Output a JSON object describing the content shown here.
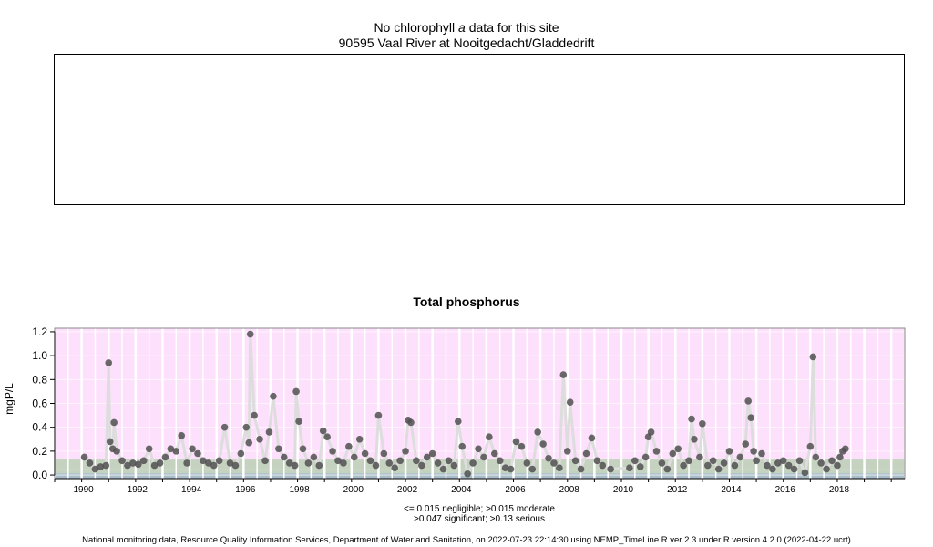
{
  "chlorophyll": {
    "line1_pre": "No chlorophyll",
    "line1_italic": "a",
    "line1_post": "data for this site",
    "site": "90595 Vaal River at Nooitgedacht/Gladdedrift"
  },
  "thresholds": {
    "line1": "<= 0.015 negligible; >0.015 moderate",
    "line2": ">0.047 significant; >0.13 serious"
  },
  "footer": "National monitoring data, Resource Quality Information Services, Department of Water and Sanitation, on 2022-07-23 22:14:30 using NEMP_TimeLine.R ver 2.3 under R version 4.2.0 (2022-04-22 ucrt)",
  "chart_data": {
    "type": "scatter",
    "title": "Total phosphorus",
    "ylabel": "mgP/L",
    "xlabel": "",
    "xlim": [
      1989.0,
      2020.5
    ],
    "ylim": [
      -0.03,
      1.23
    ],
    "x_ticks": [
      1990,
      1992,
      1994,
      1996,
      1998,
      2000,
      2002,
      2004,
      2006,
      2008,
      2010,
      2012,
      2014,
      2016,
      2018
    ],
    "y_ticks": [
      0.0,
      0.2,
      0.4,
      0.6,
      0.8,
      1.0,
      1.2
    ],
    "y_tick_labels": [
      "0.0",
      "0.2",
      "0.4",
      "0.6",
      "0.8",
      "1.0",
      "1.2"
    ],
    "bands": [
      {
        "label": "negligible",
        "from": -0.03,
        "to": 0.015,
        "color": "#a9bcc9"
      },
      {
        "label": "moderate",
        "from": 0.015,
        "to": 0.047,
        "color": "#c4d3c0"
      },
      {
        "label": "significant",
        "from": 0.047,
        "to": 0.13,
        "color": "#c6d2c0"
      },
      {
        "label": "serious",
        "from": 0.13,
        "to": 1.23,
        "color": "#fde0fb"
      }
    ],
    "colors": {
      "points": "#505050",
      "line": "#dddddd",
      "grid": "#ffffff"
    },
    "series": [
      {
        "x": [
          1990.1,
          1990.3,
          1990.5,
          1990.7,
          1990.9,
          1991.0,
          1991.05,
          1991.15,
          1991.2,
          1991.3,
          1991.5,
          1991.7,
          1991.9,
          1992.1,
          1992.3,
          1992.5,
          1992.7,
          1992.9,
          1993.1,
          1993.3,
          1993.5,
          1993.7,
          1993.9,
          1994.1,
          1994.3,
          1994.5,
          1994.7,
          1994.9,
          1995.1,
          1995.3,
          1995.5,
          1995.7,
          1995.9,
          1996.1,
          1996.2,
          1996.25,
          1996.4,
          1996.6,
          1996.8,
          1996.95,
          1997.1,
          1997.3,
          1997.5,
          1997.7,
          1997.9,
          1997.95,
          1998.05,
          1998.2,
          1998.4,
          1998.6,
          1998.8,
          1998.95,
          1999.1,
          1999.3,
          1999.5,
          1999.7,
          1999.9,
          2000.1,
          2000.3,
          2000.5,
          2000.7,
          2000.9,
          2001.0,
          2001.2,
          2001.4,
          2001.6,
          2001.8,
          2002.0,
          2002.1,
          2002.2,
          2002.4,
          2002.6,
          2002.8,
          2003.0,
          2003.2,
          2003.4,
          2003.6,
          2003.8,
          2003.95,
          2004.1,
          2004.3,
          2004.5,
          2004.7,
          2004.9,
          2005.1,
          2005.3,
          2005.5,
          2005.7,
          2005.9,
          2006.1,
          2006.3,
          2006.5,
          2006.7,
          2006.9,
          2007.1,
          2007.3,
          2007.5,
          2007.7,
          2007.85,
          2008.0,
          2008.1,
          2008.3,
          2008.5,
          2008.7,
          2008.9,
          2009.1,
          2009.3,
          2009.6,
          2010.3,
          2010.5,
          2010.7,
          2010.9,
          2011.0,
          2011.1,
          2011.3,
          2011.5,
          2011.7,
          2011.9,
          2012.1,
          2012.3,
          2012.5,
          2012.6,
          2012.7,
          2012.9,
          2013.0,
          2013.2,
          2013.4,
          2013.6,
          2013.8,
          2014.0,
          2014.2,
          2014.4,
          2014.6,
          2014.7,
          2014.8,
          2014.9,
          2015.0,
          2015.2,
          2015.4,
          2015.6,
          2015.8,
          2016.0,
          2016.2,
          2016.4,
          2016.6,
          2016.8,
          2017.0,
          2017.1,
          2017.2,
          2017.4,
          2017.6,
          2017.8,
          2018.0,
          2018.1,
          2018.2,
          2018.3
        ],
        "y": [
          0.15,
          0.1,
          0.05,
          0.07,
          0.08,
          0.94,
          0.28,
          0.22,
          0.44,
          0.2,
          0.12,
          0.08,
          0.1,
          0.09,
          0.12,
          0.22,
          0.08,
          0.1,
          0.15,
          0.22,
          0.2,
          0.33,
          0.1,
          0.22,
          0.18,
          0.12,
          0.1,
          0.08,
          0.12,
          0.4,
          0.1,
          0.08,
          0.18,
          0.4,
          0.27,
          1.18,
          0.5,
          0.3,
          0.12,
          0.36,
          0.66,
          0.22,
          0.15,
          0.1,
          0.08,
          0.7,
          0.45,
          0.22,
          0.1,
          0.15,
          0.08,
          0.37,
          0.32,
          0.2,
          0.12,
          0.1,
          0.24,
          0.15,
          0.3,
          0.18,
          0.12,
          0.08,
          0.5,
          0.18,
          0.1,
          0.06,
          0.12,
          0.2,
          0.46,
          0.44,
          0.12,
          0.08,
          0.15,
          0.18,
          0.1,
          0.05,
          0.12,
          0.08,
          0.45,
          0.24,
          0.01,
          0.1,
          0.22,
          0.15,
          0.32,
          0.18,
          0.12,
          0.06,
          0.05,
          0.28,
          0.24,
          0.1,
          0.05,
          0.36,
          0.26,
          0.14,
          0.1,
          0.06,
          0.84,
          0.2,
          0.61,
          0.12,
          0.05,
          0.18,
          0.31,
          0.12,
          0.08,
          0.05,
          0.06,
          0.12,
          0.07,
          0.15,
          0.32,
          0.36,
          0.2,
          0.1,
          0.05,
          0.18,
          0.22,
          0.08,
          0.12,
          0.47,
          0.3,
          0.15,
          0.43,
          0.08,
          0.12,
          0.05,
          0.1,
          0.2,
          0.08,
          0.15,
          0.26,
          0.62,
          0.48,
          0.2,
          0.12,
          0.18,
          0.08,
          0.05,
          0.1,
          0.12,
          0.08,
          0.05,
          0.12,
          0.02,
          0.24,
          0.99,
          0.15,
          0.1,
          0.05,
          0.12,
          0.08,
          0.15,
          0.2,
          0.22
        ]
      }
    ]
  }
}
